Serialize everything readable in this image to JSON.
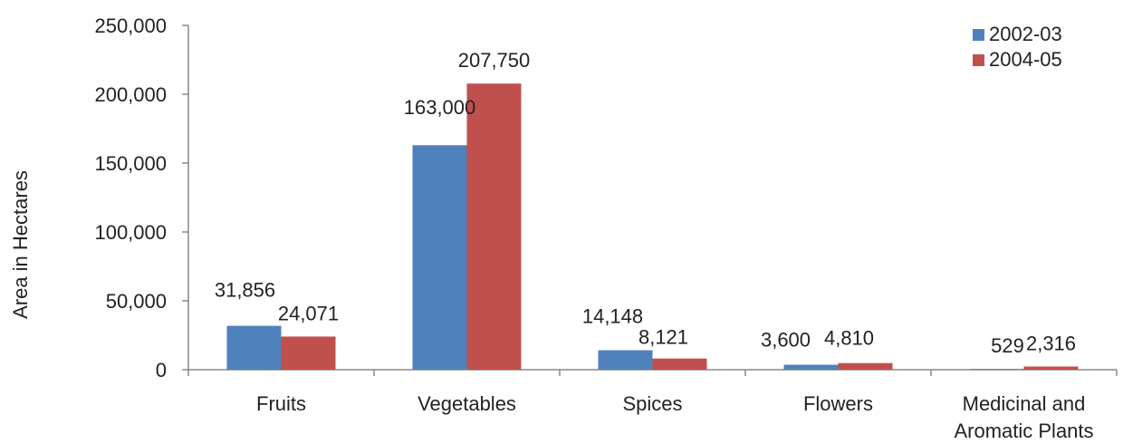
{
  "chart_data": {
    "type": "bar",
    "title": "",
    "xlabel": "",
    "ylabel": "Area in Hectares",
    "ylim": [
      0,
      250000
    ],
    "yticks": [
      0,
      50000,
      100000,
      150000,
      200000,
      250000
    ],
    "ytick_labels": [
      "0",
      "50,000",
      "100,000",
      "150,000",
      "200,000",
      "250,000"
    ],
    "grid": false,
    "legend_position": "top-right",
    "categories": [
      [
        "Fruits"
      ],
      [
        "Vegetables"
      ],
      [
        "Spices"
      ],
      [
        "Flowers"
      ],
      [
        "Medicinal and",
        "Aromatic Plants"
      ]
    ],
    "series": [
      {
        "name": "2002-03",
        "color": "#4f81bd",
        "values": [
          31856,
          163000,
          14148,
          3600,
          529
        ],
        "labels": [
          "31,856",
          "163,000",
          "14,148",
          "3,600",
          "529"
        ]
      },
      {
        "name": "2004-05",
        "color": "#c0504d",
        "values": [
          24071,
          207750,
          8121,
          4810,
          2316
        ],
        "labels": [
          "24,071",
          "207,750",
          "8,121",
          "4,810",
          "2,316"
        ]
      }
    ]
  }
}
